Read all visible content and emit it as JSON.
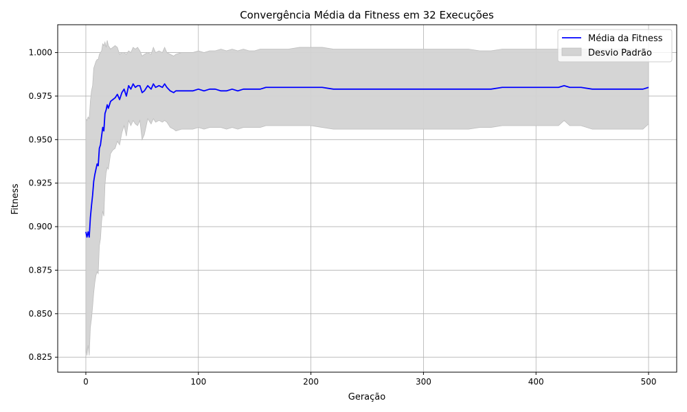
{
  "chart_data": {
    "type": "line",
    "title": "Convergência Média da Fitness em 32 Execuções",
    "xlabel": "Geração",
    "ylabel": "Fitness",
    "xlim": [
      -25,
      525
    ],
    "ylim": [
      0.8164,
      1.016
    ],
    "xticks": [
      0,
      100,
      200,
      300,
      400,
      500
    ],
    "yticks": [
      0.825,
      0.85,
      0.875,
      0.9,
      0.925,
      0.95,
      0.975,
      1.0
    ],
    "grid": true,
    "legend_position": "top-right",
    "colors": {
      "mean_line": "#0000ff",
      "std_fill": "#d3d3d3",
      "std_edge": "#bdbdbd",
      "grid": "#b0b0b0"
    },
    "series": [
      {
        "name": "Média da Fitness",
        "kind": "line",
        "x": [
          0,
          1,
          2,
          3,
          4,
          5,
          6,
          7,
          8,
          9,
          10,
          11,
          12,
          13,
          14,
          15,
          16,
          17,
          18,
          19,
          20,
          22,
          24,
          26,
          28,
          30,
          32,
          34,
          36,
          38,
          40,
          42,
          44,
          46,
          48,
          50,
          52,
          55,
          58,
          60,
          62,
          65,
          68,
          70,
          72,
          75,
          78,
          80,
          85,
          90,
          95,
          100,
          105,
          110,
          115,
          120,
          125,
          130,
          135,
          140,
          145,
          150,
          155,
          160,
          165,
          170,
          180,
          190,
          200,
          210,
          220,
          230,
          240,
          250,
          260,
          270,
          280,
          290,
          300,
          310,
          320,
          330,
          340,
          350,
          360,
          370,
          380,
          390,
          400,
          410,
          420,
          425,
          430,
          440,
          450,
          460,
          470,
          480,
          490,
          495,
          500
        ],
        "values": [
          0.897,
          0.894,
          0.897,
          0.894,
          0.905,
          0.912,
          0.918,
          0.926,
          0.93,
          0.933,
          0.936,
          0.935,
          0.945,
          0.947,
          0.952,
          0.957,
          0.955,
          0.965,
          0.967,
          0.97,
          0.968,
          0.972,
          0.973,
          0.974,
          0.976,
          0.973,
          0.977,
          0.979,
          0.975,
          0.981,
          0.979,
          0.982,
          0.98,
          0.981,
          0.981,
          0.977,
          0.978,
          0.981,
          0.979,
          0.982,
          0.98,
          0.981,
          0.98,
          0.982,
          0.98,
          0.978,
          0.977,
          0.978,
          0.978,
          0.978,
          0.978,
          0.979,
          0.978,
          0.979,
          0.979,
          0.978,
          0.978,
          0.979,
          0.978,
          0.979,
          0.979,
          0.979,
          0.979,
          0.98,
          0.98,
          0.98,
          0.98,
          0.98,
          0.98,
          0.98,
          0.979,
          0.979,
          0.979,
          0.979,
          0.979,
          0.979,
          0.979,
          0.979,
          0.979,
          0.979,
          0.979,
          0.979,
          0.979,
          0.979,
          0.979,
          0.98,
          0.98,
          0.98,
          0.98,
          0.98,
          0.98,
          0.981,
          0.98,
          0.98,
          0.979,
          0.979,
          0.979,
          0.979,
          0.979,
          0.979,
          0.98
        ]
      },
      {
        "name": "Desvio Padrão",
        "kind": "band",
        "x": [
          0,
          1,
          2,
          3,
          4,
          5,
          6,
          7,
          8,
          9,
          10,
          11,
          12,
          13,
          14,
          15,
          16,
          17,
          18,
          19,
          20,
          22,
          24,
          26,
          28,
          30,
          32,
          34,
          36,
          38,
          40,
          42,
          44,
          46,
          48,
          50,
          52,
          55,
          58,
          60,
          62,
          65,
          68,
          70,
          72,
          75,
          78,
          80,
          85,
          90,
          95,
          100,
          105,
          110,
          115,
          120,
          125,
          130,
          135,
          140,
          145,
          150,
          155,
          160,
          165,
          170,
          180,
          190,
          200,
          210,
          220,
          230,
          240,
          250,
          260,
          270,
          280,
          290,
          300,
          310,
          320,
          330,
          340,
          350,
          360,
          370,
          380,
          390,
          400,
          410,
          420,
          425,
          430,
          440,
          450,
          460,
          470,
          480,
          490,
          495,
          500
        ],
        "upper": [
          0.962,
          0.961,
          0.963,
          0.962,
          0.972,
          0.978,
          0.981,
          0.991,
          0.993,
          0.995,
          0.996,
          0.996,
          0.999,
          1.0,
          1.001,
          1.005,
          1.004,
          1.006,
          1.003,
          1.007,
          1.004,
          1.002,
          1.003,
          1.004,
          1.003,
          0.999,
          1.0,
          1.0,
          0.999,
          1.001,
          1.0,
          1.003,
          1.002,
          1.003,
          1.001,
          0.998,
          0.999,
          1.0,
          0.999,
          1.003,
          1.0,
          1.001,
          1.0,
          1.003,
          1.0,
          0.999,
          0.998,
          0.999,
          1.0,
          1.0,
          1.0,
          1.001,
          1.0,
          1.001,
          1.001,
          1.002,
          1.001,
          1.002,
          1.001,
          1.002,
          1.001,
          1.001,
          1.002,
          1.002,
          1.002,
          1.002,
          1.002,
          1.003,
          1.003,
          1.003,
          1.002,
          1.002,
          1.002,
          1.002,
          1.002,
          1.002,
          1.002,
          1.002,
          1.002,
          1.002,
          1.002,
          1.002,
          1.002,
          1.001,
          1.001,
          1.002,
          1.002,
          1.002,
          1.002,
          1.002,
          1.002,
          1.002,
          1.002,
          1.002,
          1.002,
          1.002,
          1.002,
          1.002,
          1.002,
          1.002,
          1.002
        ],
        "lower": [
          0.831,
          0.826,
          0.832,
          0.826,
          0.842,
          0.847,
          0.854,
          0.862,
          0.868,
          0.872,
          0.874,
          0.873,
          0.889,
          0.893,
          0.903,
          0.909,
          0.906,
          0.924,
          0.931,
          0.934,
          0.933,
          0.942,
          0.944,
          0.945,
          0.949,
          0.947,
          0.954,
          0.958,
          0.952,
          0.961,
          0.958,
          0.961,
          0.959,
          0.958,
          0.961,
          0.95,
          0.953,
          0.962,
          0.959,
          0.962,
          0.96,
          0.961,
          0.96,
          0.961,
          0.96,
          0.957,
          0.956,
          0.955,
          0.956,
          0.956,
          0.956,
          0.957,
          0.956,
          0.957,
          0.957,
          0.957,
          0.956,
          0.957,
          0.956,
          0.957,
          0.957,
          0.957,
          0.957,
          0.958,
          0.958,
          0.958,
          0.958,
          0.958,
          0.958,
          0.957,
          0.956,
          0.956,
          0.956,
          0.956,
          0.956,
          0.956,
          0.956,
          0.956,
          0.956,
          0.956,
          0.956,
          0.956,
          0.956,
          0.957,
          0.957,
          0.958,
          0.958,
          0.958,
          0.958,
          0.958,
          0.958,
          0.961,
          0.958,
          0.958,
          0.956,
          0.956,
          0.956,
          0.956,
          0.956,
          0.956,
          0.959
        ]
      }
    ]
  }
}
